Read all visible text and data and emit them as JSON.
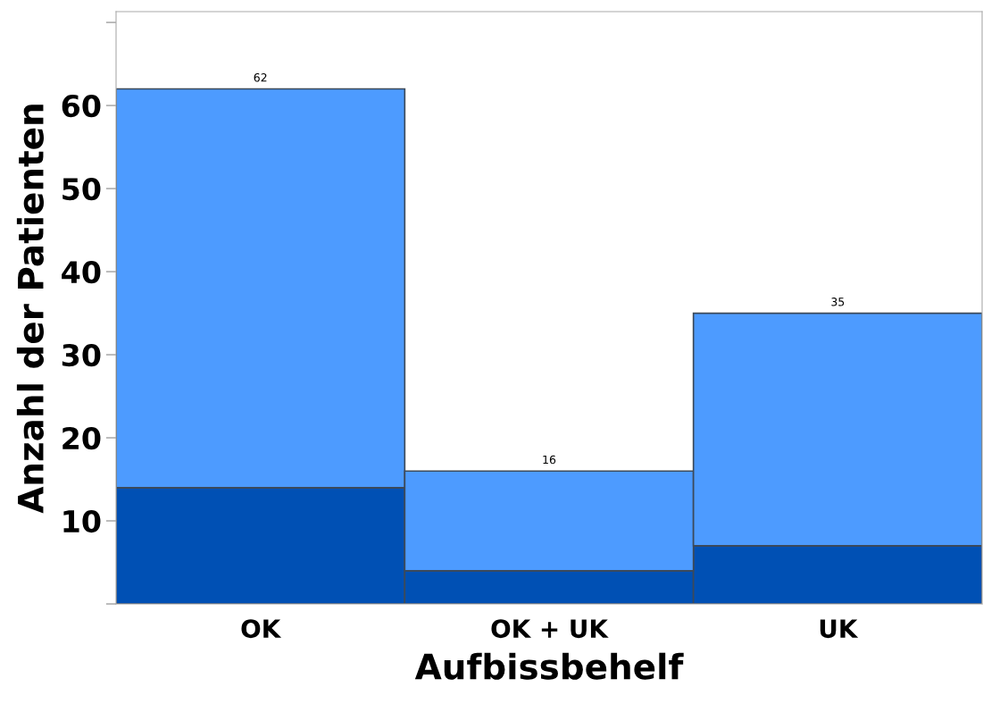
{
  "chart_data": {
    "type": "bar",
    "stacked": true,
    "xlabel": "Aufbissbehelf",
    "ylabel": "Anzahl der Patienten",
    "categories": [
      "OK",
      "OK + UK",
      "UK"
    ],
    "series": [
      {
        "color": "#0050b4",
        "values": [
          14,
          4,
          7
        ]
      },
      {
        "color": "#4d9bff",
        "values": [
          48,
          12,
          28
        ]
      }
    ],
    "totals": [
      "62",
      "16",
      "35"
    ],
    "ylim": [
      0,
      71.3
    ],
    "yticks": [
      {
        "value": 0,
        "label": null
      },
      10,
      20,
      30,
      40,
      50,
      60,
      {
        "value": 70,
        "label": null
      }
    ],
    "grid": false,
    "legend": false
  }
}
